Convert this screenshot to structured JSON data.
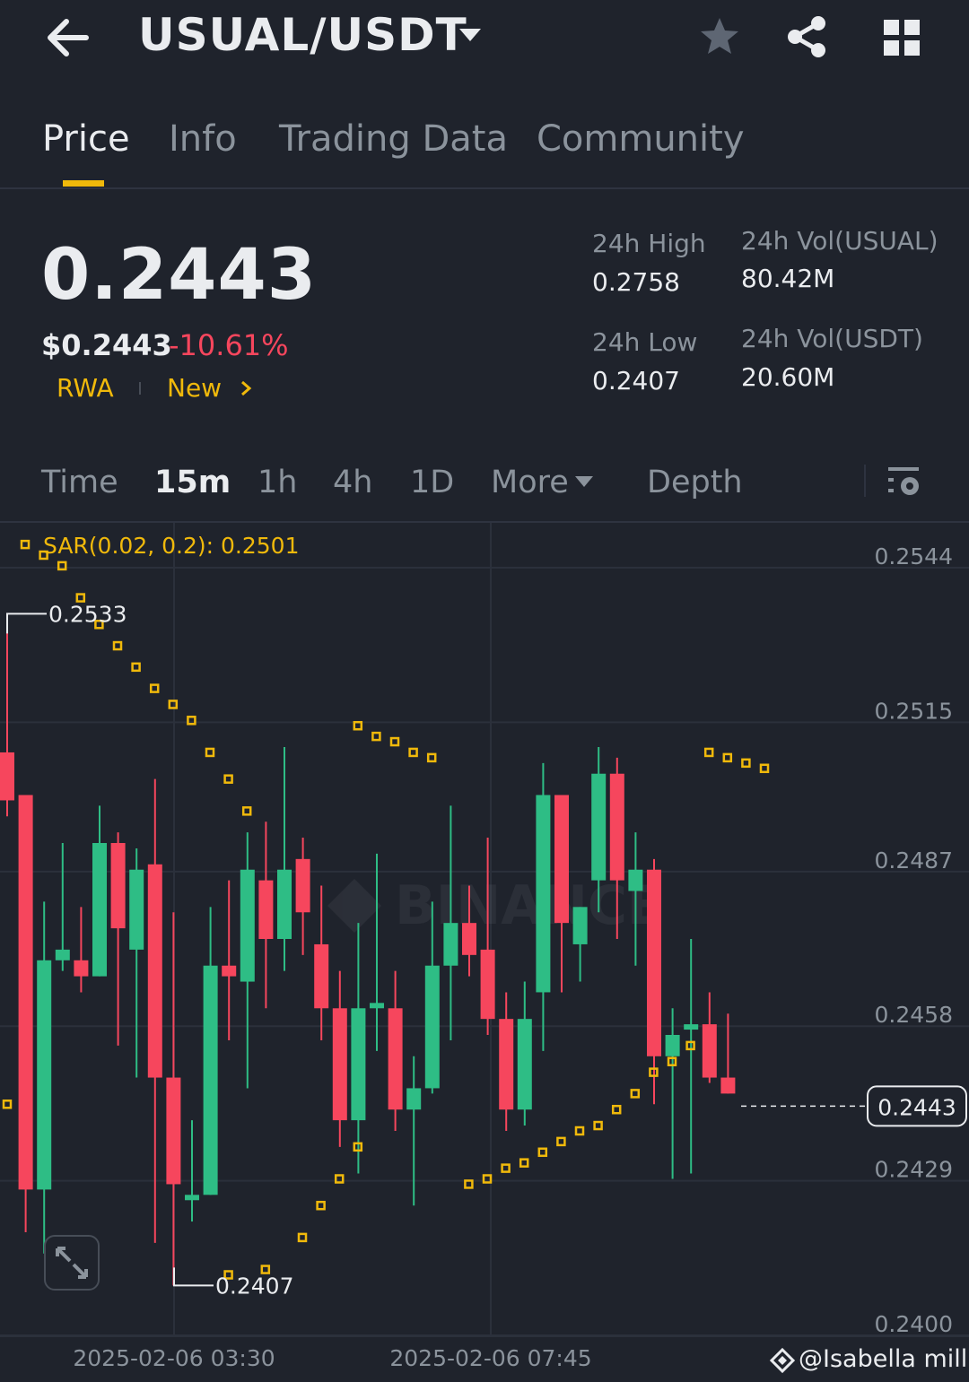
{
  "header": {
    "pair": "USUAL/USDT",
    "icons": [
      "back-arrow-icon",
      "dropdown-caret-icon",
      "star-icon",
      "share-icon",
      "grid-menu-icon"
    ]
  },
  "tabs": [
    "Price",
    "Info",
    "Trading Data",
    "Community"
  ],
  "active_tab": "Price",
  "price": {
    "last": "0.2443",
    "usd": "$0.2443",
    "change_pct": "-10.61%",
    "tags": [
      "RWA",
      "New"
    ]
  },
  "stats": {
    "high_label": "24h High",
    "high": "0.2758",
    "low_label": "24h Low",
    "low": "0.2407",
    "vol_base_label": "24h Vol(USUAL)",
    "vol_base": "80.42M",
    "vol_quote_label": "24h Vol(USDT)",
    "vol_quote": "20.60M"
  },
  "intervals": [
    "Time",
    "15m",
    "1h",
    "4h",
    "1D",
    "More",
    "Depth"
  ],
  "active_interval": "15m",
  "indicator_label": "SAR(0.02, 0.2): 0.2501",
  "watermark": "@Isabella millie",
  "colors": {
    "up": "#2ebd85",
    "down": "#f6465d",
    "accent": "#f0b90b",
    "bg": "#1f232c"
  },
  "chart_data": {
    "type": "candlestick",
    "y_ticks": [
      "0.2544",
      "0.2515",
      "0.2487",
      "0.2458",
      "0.2429",
      "0.2400"
    ],
    "x_ticks": [
      "2025-02-06 03:30",
      "2025-02-06 07:45"
    ],
    "last_price_label": "0.2443",
    "high_marker": "0.2533",
    "low_marker": "0.2407",
    "candles": [
      {
        "o": 0.2507,
        "h": 0.2533,
        "l": 0.2495,
        "c": 0.2498
      },
      {
        "o": 0.2499,
        "h": 0.2499,
        "l": 0.2417,
        "c": 0.2425
      },
      {
        "o": 0.2425,
        "h": 0.2479,
        "l": 0.2413,
        "c": 0.2468
      },
      {
        "o": 0.2468,
        "h": 0.249,
        "l": 0.2466,
        "c": 0.247
      },
      {
        "o": 0.2468,
        "h": 0.2478,
        "l": 0.2462,
        "c": 0.2465
      },
      {
        "o": 0.2465,
        "h": 0.2497,
        "l": 0.2465,
        "c": 0.249
      },
      {
        "o": 0.249,
        "h": 0.2492,
        "l": 0.2452,
        "c": 0.2474
      },
      {
        "o": 0.247,
        "h": 0.2489,
        "l": 0.2446,
        "c": 0.2485
      },
      {
        "o": 0.2486,
        "h": 0.2502,
        "l": 0.2415,
        "c": 0.2446
      },
      {
        "o": 0.2446,
        "h": 0.2477,
        "l": 0.2407,
        "c": 0.2426
      },
      {
        "o": 0.2423,
        "h": 0.2438,
        "l": 0.2419,
        "c": 0.2424
      },
      {
        "o": 0.2424,
        "h": 0.2478,
        "l": 0.2424,
        "c": 0.2467
      },
      {
        "o": 0.2467,
        "h": 0.2483,
        "l": 0.2453,
        "c": 0.2465
      },
      {
        "o": 0.2464,
        "h": 0.2492,
        "l": 0.2444,
        "c": 0.2485
      },
      {
        "o": 0.2483,
        "h": 0.2494,
        "l": 0.2459,
        "c": 0.2472
      },
      {
        "o": 0.2472,
        "h": 0.2508,
        "l": 0.2466,
        "c": 0.2485
      },
      {
        "o": 0.2487,
        "h": 0.2491,
        "l": 0.2469,
        "c": 0.2477
      },
      {
        "o": 0.2471,
        "h": 0.2482,
        "l": 0.2453,
        "c": 0.2459
      },
      {
        "o": 0.2459,
        "h": 0.2466,
        "l": 0.2433,
        "c": 0.2438
      },
      {
        "o": 0.2438,
        "h": 0.2475,
        "l": 0.2428,
        "c": 0.2459
      },
      {
        "o": 0.2459,
        "h": 0.2488,
        "l": 0.2451,
        "c": 0.246
      },
      {
        "o": 0.2459,
        "h": 0.2466,
        "l": 0.2436,
        "c": 0.244
      },
      {
        "o": 0.244,
        "h": 0.245,
        "l": 0.2422,
        "c": 0.2444
      },
      {
        "o": 0.2444,
        "h": 0.2479,
        "l": 0.2443,
        "c": 0.2467
      },
      {
        "o": 0.2467,
        "h": 0.2497,
        "l": 0.2453,
        "c": 0.2475
      },
      {
        "o": 0.2475,
        "h": 0.2482,
        "l": 0.2465,
        "c": 0.2469
      },
      {
        "o": 0.247,
        "h": 0.2491,
        "l": 0.2454,
        "c": 0.2457
      },
      {
        "o": 0.2457,
        "h": 0.2462,
        "l": 0.2436,
        "c": 0.244
      },
      {
        "o": 0.244,
        "h": 0.2464,
        "l": 0.2437,
        "c": 0.2457
      },
      {
        "o": 0.2462,
        "h": 0.2505,
        "l": 0.2451,
        "c": 0.2499
      },
      {
        "o": 0.2499,
        "h": 0.2499,
        "l": 0.2462,
        "c": 0.2475
      },
      {
        "o": 0.2471,
        "h": 0.2478,
        "l": 0.2464,
        "c": 0.2478
      },
      {
        "o": 0.2483,
        "h": 0.2508,
        "l": 0.2477,
        "c": 0.2503
      },
      {
        "o": 0.2503,
        "h": 0.2506,
        "l": 0.2472,
        "c": 0.2483
      },
      {
        "o": 0.2481,
        "h": 0.2492,
        "l": 0.2467,
        "c": 0.2485
      },
      {
        "o": 0.2485,
        "h": 0.2487,
        "l": 0.2441,
        "c": 0.245
      },
      {
        "o": 0.245,
        "h": 0.2459,
        "l": 0.2427,
        "c": 0.2454
      },
      {
        "o": 0.2455,
        "h": 0.2472,
        "l": 0.2428,
        "c": 0.2456
      },
      {
        "o": 0.2456,
        "h": 0.2462,
        "l": 0.2445,
        "c": 0.2446
      },
      {
        "o": 0.2446,
        "h": 0.2458,
        "l": 0.2443,
        "c": 0.2443
      }
    ],
    "sar": [
      [
        0,
        0.2546
      ],
      [
        1,
        0.2544
      ],
      [
        2,
        0.2542
      ],
      [
        3,
        0.2536
      ],
      [
        4,
        0.2531
      ],
      [
        5,
        0.2527
      ],
      [
        6,
        0.2523
      ],
      [
        7,
        0.2519
      ],
      [
        8,
        0.2516
      ],
      [
        9,
        0.2513
      ],
      [
        10,
        0.2507
      ],
      [
        11,
        0.2502
      ],
      [
        12,
        0.2496
      ],
      [
        18,
        0.2512
      ],
      [
        19,
        0.251
      ],
      [
        20,
        0.2509
      ],
      [
        21,
        0.2507
      ],
      [
        22,
        0.2506
      ],
      [
        -1,
        0.2441
      ],
      [
        11,
        0.2409
      ],
      [
        13,
        0.241
      ],
      [
        15,
        0.2416
      ],
      [
        16,
        0.2422
      ],
      [
        17,
        0.2427
      ],
      [
        18,
        0.2433
      ],
      [
        24,
        0.2426
      ],
      [
        25,
        0.2427
      ],
      [
        26,
        0.2429
      ],
      [
        27,
        0.243
      ],
      [
        28,
        0.2432
      ],
      [
        29,
        0.2434
      ],
      [
        30,
        0.2436
      ],
      [
        31,
        0.2437
      ],
      [
        32,
        0.244
      ],
      [
        33,
        0.2443
      ],
      [
        34,
        0.2447
      ],
      [
        35,
        0.2449
      ],
      [
        36,
        0.2452
      ],
      [
        37,
        0.2507
      ],
      [
        38,
        0.2506
      ],
      [
        39,
        0.2505
      ],
      [
        40,
        0.2504
      ]
    ]
  }
}
